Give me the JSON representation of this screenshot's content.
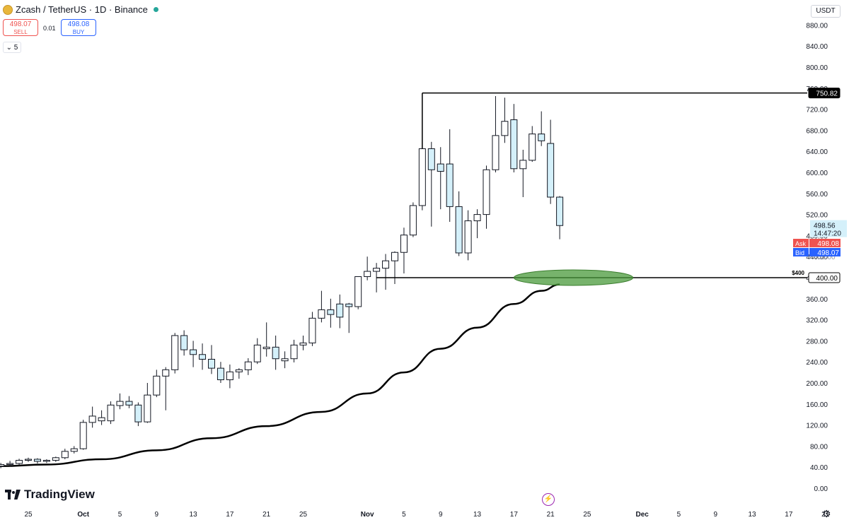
{
  "header": {
    "symbol": "Zcash / TetherUS · 1D · Binance"
  },
  "trade": {
    "sell_price": "498.07",
    "sell_label": "SELL",
    "spread": "0.01",
    "buy_price": "498.08",
    "buy_label": "BUY"
  },
  "indicator_toggle": "5",
  "currency": "USDT",
  "logo": "TradingView",
  "colors": {
    "up_body": "#ffffff",
    "down_body": "#d4f0fa",
    "candle_outline": "#131722",
    "ma_line": "#000000",
    "zone": "#4a9a3b",
    "ask": "#ef5350",
    "bid": "#2962ff",
    "last_price_bg": "#d4f0fa"
  },
  "chart_data": {
    "type": "candlestick",
    "title": "Zcash / TetherUS · 1D · Binance",
    "ylim": [
      0,
      900
    ],
    "y_ticks": [
      0,
      40,
      80,
      120,
      160,
      200,
      240,
      280,
      320,
      360,
      400,
      440,
      480,
      520,
      560,
      600,
      640,
      680,
      720,
      760,
      800,
      840,
      880
    ],
    "x_tick_labels": [
      {
        "date": "2025-09-25",
        "label": "25"
      },
      {
        "date": "2025-10-01",
        "label": "Oct"
      },
      {
        "date": "2025-10-05",
        "label": "5"
      },
      {
        "date": "2025-10-09",
        "label": "9"
      },
      {
        "date": "2025-10-13",
        "label": "13"
      },
      {
        "date": "2025-10-17",
        "label": "17"
      },
      {
        "date": "2025-10-21",
        "label": "21"
      },
      {
        "date": "2025-10-25",
        "label": "25"
      },
      {
        "date": "2025-11-01",
        "label": "Nov"
      },
      {
        "date": "2025-11-05",
        "label": "5"
      },
      {
        "date": "2025-11-09",
        "label": "9"
      },
      {
        "date": "2025-11-13",
        "label": "13"
      },
      {
        "date": "2025-11-17",
        "label": "17"
      },
      {
        "date": "2025-11-21",
        "label": "21"
      },
      {
        "date": "2025-11-25",
        "label": "25"
      },
      {
        "date": "2025-12-01",
        "label": "Dec"
      },
      {
        "date": "2025-12-05",
        "label": "5"
      },
      {
        "date": "2025-12-09",
        "label": "9"
      },
      {
        "date": "2025-12-13",
        "label": "13"
      },
      {
        "date": "2025-12-17",
        "label": "17"
      },
      {
        "date": "2025-12-21",
        "label": "21"
      },
      {
        "date": "2026-01-02",
        "label": "2"
      }
    ],
    "candles": [
      {
        "date": "2025-09-22",
        "o": 42,
        "h": 48,
        "l": 38,
        "c": 45
      },
      {
        "date": "2025-09-23",
        "o": 45,
        "h": 52,
        "l": 41,
        "c": 47
      },
      {
        "date": "2025-09-24",
        "o": 47,
        "h": 56,
        "l": 44,
        "c": 53
      },
      {
        "date": "2025-09-25",
        "o": 53,
        "h": 58,
        "l": 50,
        "c": 55
      },
      {
        "date": "2025-09-26",
        "o": 55,
        "h": 57,
        "l": 47,
        "c": 51
      },
      {
        "date": "2025-09-27",
        "o": 51,
        "h": 55,
        "l": 48,
        "c": 53
      },
      {
        "date": "2025-09-28",
        "o": 53,
        "h": 60,
        "l": 50,
        "c": 58
      },
      {
        "date": "2025-09-29",
        "o": 58,
        "h": 75,
        "l": 55,
        "c": 70
      },
      {
        "date": "2025-09-30",
        "o": 70,
        "h": 80,
        "l": 66,
        "c": 75
      },
      {
        "date": "2025-10-01",
        "o": 75,
        "h": 130,
        "l": 73,
        "c": 125
      },
      {
        "date": "2025-10-02",
        "o": 125,
        "h": 155,
        "l": 115,
        "c": 137
      },
      {
        "date": "2025-10-03",
        "o": 128,
        "h": 148,
        "l": 120,
        "c": 134
      },
      {
        "date": "2025-10-04",
        "o": 128,
        "h": 165,
        "l": 122,
        "c": 158
      },
      {
        "date": "2025-10-05",
        "o": 157,
        "h": 180,
        "l": 150,
        "c": 165
      },
      {
        "date": "2025-10-06",
        "o": 165,
        "h": 175,
        "l": 152,
        "c": 158
      },
      {
        "date": "2025-10-07",
        "o": 158,
        "h": 163,
        "l": 118,
        "c": 126
      },
      {
        "date": "2025-10-08",
        "o": 126,
        "h": 200,
        "l": 124,
        "c": 177
      },
      {
        "date": "2025-10-09",
        "o": 177,
        "h": 225,
        "l": 173,
        "c": 213
      },
      {
        "date": "2025-10-10",
        "o": 213,
        "h": 230,
        "l": 148,
        "c": 225
      },
      {
        "date": "2025-10-11",
        "o": 225,
        "h": 295,
        "l": 218,
        "c": 290
      },
      {
        "date": "2025-10-12",
        "o": 290,
        "h": 300,
        "l": 252,
        "c": 263
      },
      {
        "date": "2025-10-13",
        "o": 263,
        "h": 280,
        "l": 230,
        "c": 254
      },
      {
        "date": "2025-10-14",
        "o": 254,
        "h": 275,
        "l": 225,
        "c": 245
      },
      {
        "date": "2025-10-15",
        "o": 245,
        "h": 272,
        "l": 217,
        "c": 228
      },
      {
        "date": "2025-10-16",
        "o": 228,
        "h": 240,
        "l": 200,
        "c": 206
      },
      {
        "date": "2025-10-17",
        "o": 206,
        "h": 235,
        "l": 190,
        "c": 221
      },
      {
        "date": "2025-10-18",
        "o": 221,
        "h": 228,
        "l": 208,
        "c": 225
      },
      {
        "date": "2025-10-19",
        "o": 225,
        "h": 247,
        "l": 215,
        "c": 240
      },
      {
        "date": "2025-10-20",
        "o": 240,
        "h": 285,
        "l": 236,
        "c": 272
      },
      {
        "date": "2025-10-21",
        "o": 265,
        "h": 315,
        "l": 250,
        "c": 268
      },
      {
        "date": "2025-10-22",
        "o": 268,
        "h": 290,
        "l": 225,
        "c": 246
      },
      {
        "date": "2025-10-23",
        "o": 242,
        "h": 260,
        "l": 228,
        "c": 246
      },
      {
        "date": "2025-10-24",
        "o": 246,
        "h": 282,
        "l": 239,
        "c": 272
      },
      {
        "date": "2025-10-25",
        "o": 272,
        "h": 290,
        "l": 262,
        "c": 276
      },
      {
        "date": "2025-10-26",
        "o": 276,
        "h": 335,
        "l": 270,
        "c": 323
      },
      {
        "date": "2025-10-27",
        "o": 323,
        "h": 375,
        "l": 315,
        "c": 339
      },
      {
        "date": "2025-10-28",
        "o": 339,
        "h": 360,
        "l": 305,
        "c": 330
      },
      {
        "date": "2025-10-29",
        "o": 350,
        "h": 368,
        "l": 304,
        "c": 325
      },
      {
        "date": "2025-10-30",
        "o": 350,
        "h": 352,
        "l": 295,
        "c": 345
      },
      {
        "date": "2025-10-31",
        "o": 345,
        "h": 400,
        "l": 340,
        "c": 402
      },
      {
        "date": "2025-11-01",
        "o": 402,
        "h": 440,
        "l": 395,
        "c": 412
      },
      {
        "date": "2025-11-02",
        "o": 412,
        "h": 428,
        "l": 372,
        "c": 418
      },
      {
        "date": "2025-11-03",
        "o": 418,
        "h": 445,
        "l": 377,
        "c": 432
      },
      {
        "date": "2025-11-04",
        "o": 432,
        "h": 450,
        "l": 388,
        "c": 448
      },
      {
        "date": "2025-11-05",
        "o": 448,
        "h": 495,
        "l": 408,
        "c": 481
      },
      {
        "date": "2025-11-06",
        "o": 481,
        "h": 543,
        "l": 477,
        "c": 537
      },
      {
        "date": "2025-11-07",
        "o": 537,
        "h": 750,
        "l": 528,
        "c": 645
      },
      {
        "date": "2025-11-08",
        "o": 645,
        "h": 658,
        "l": 497,
        "c": 605
      },
      {
        "date": "2025-11-09",
        "o": 616,
        "h": 648,
        "l": 530,
        "c": 602
      },
      {
        "date": "2025-11-10",
        "o": 616,
        "h": 682,
        "l": 506,
        "c": 535
      },
      {
        "date": "2025-11-11",
        "o": 535,
        "h": 564,
        "l": 441,
        "c": 447
      },
      {
        "date": "2025-11-12",
        "o": 447,
        "h": 528,
        "l": 433,
        "c": 508
      },
      {
        "date": "2025-11-13",
        "o": 508,
        "h": 530,
        "l": 475,
        "c": 520
      },
      {
        "date": "2025-11-14",
        "o": 520,
        "h": 613,
        "l": 493,
        "c": 605
      },
      {
        "date": "2025-11-15",
        "o": 605,
        "h": 745,
        "l": 600,
        "c": 670
      },
      {
        "date": "2025-11-16",
        "o": 670,
        "h": 742,
        "l": 656,
        "c": 697
      },
      {
        "date": "2025-11-17",
        "o": 700,
        "h": 730,
        "l": 600,
        "c": 607
      },
      {
        "date": "2025-11-18",
        "o": 607,
        "h": 643,
        "l": 553,
        "c": 623
      },
      {
        "date": "2025-11-19",
        "o": 623,
        "h": 688,
        "l": 620,
        "c": 673
      },
      {
        "date": "2025-11-20",
        "o": 673,
        "h": 716,
        "l": 650,
        "c": 660
      },
      {
        "date": "2025-11-21",
        "o": 655,
        "h": 700,
        "l": 540,
        "c": 553
      },
      {
        "date": "2025-11-22",
        "o": 553,
        "h": 555,
        "l": 473,
        "c": 499
      }
    ],
    "moving_average": {
      "start": {
        "date": "2025-09-22",
        "value": 42
      },
      "points": [
        {
          "date": "2025-09-22",
          "value": 42
        },
        {
          "date": "2025-09-27",
          "value": 45
        },
        {
          "date": "2025-10-03",
          "value": 55
        },
        {
          "date": "2025-10-09",
          "value": 72
        },
        {
          "date": "2025-10-15",
          "value": 95
        },
        {
          "date": "2025-10-21",
          "value": 118
        },
        {
          "date": "2025-10-27",
          "value": 145
        },
        {
          "date": "2025-11-01",
          "value": 180
        },
        {
          "date": "2025-11-05",
          "value": 220
        },
        {
          "date": "2025-11-09",
          "value": 265
        },
        {
          "date": "2025-11-13",
          "value": 305
        },
        {
          "date": "2025-11-17",
          "value": 350
        },
        {
          "date": "2025-11-20",
          "value": 375
        },
        {
          "date": "2025-11-22",
          "value": 387
        }
      ]
    },
    "horizontal_lines": [
      {
        "value": 750.82,
        "label": "750.82",
        "from_date": "2025-11-07"
      },
      {
        "value": 400,
        "label": "400.00",
        "text": "$400",
        "from_date": "2025-11-02"
      }
    ],
    "support_zone": {
      "center_value": 400,
      "from_date": "2025-11-17",
      "to_date": "2025-11-30"
    },
    "price_labels": {
      "last": {
        "value": 498.56,
        "label": "498.56",
        "countdown": "14:47:20"
      },
      "ask": {
        "value": 498.08,
        "label": "Ask",
        "price": "498.08"
      },
      "bid": {
        "value": 498.07,
        "label": "Bid",
        "price": "498.07"
      },
      "hidden_tick": "440.00"
    }
  }
}
